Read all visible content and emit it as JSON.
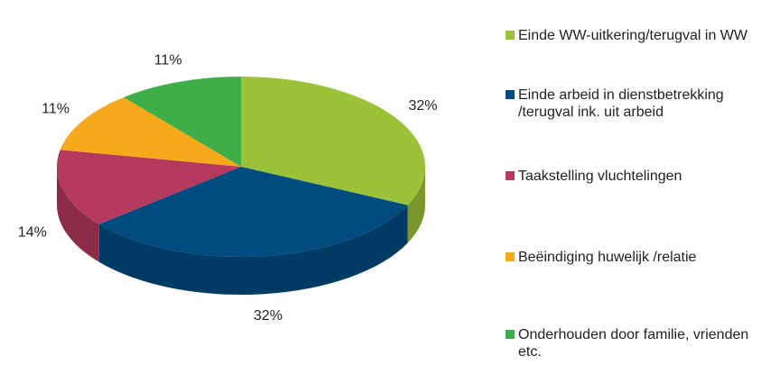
{
  "chart_data": {
    "type": "pie3d",
    "categories": [
      "Einde WW-uitkering/terugval in WW",
      "Einde arbeid in dienstbetrekking /terugval ink. uit arbeid",
      "Taakstelling vluchtelingen",
      "Beëindiging huwelijk /relatie",
      "Onderhouden door familie, vrienden etc."
    ],
    "values": [
      32,
      32,
      14,
      11,
      11
    ],
    "value_labels": [
      "32%",
      "32%",
      "14%",
      "11%",
      "11%"
    ],
    "colors": [
      "#9cc23a",
      "#004b80",
      "#b5395c",
      "#f7a91c",
      "#3eae49"
    ],
    "legend": "right"
  }
}
